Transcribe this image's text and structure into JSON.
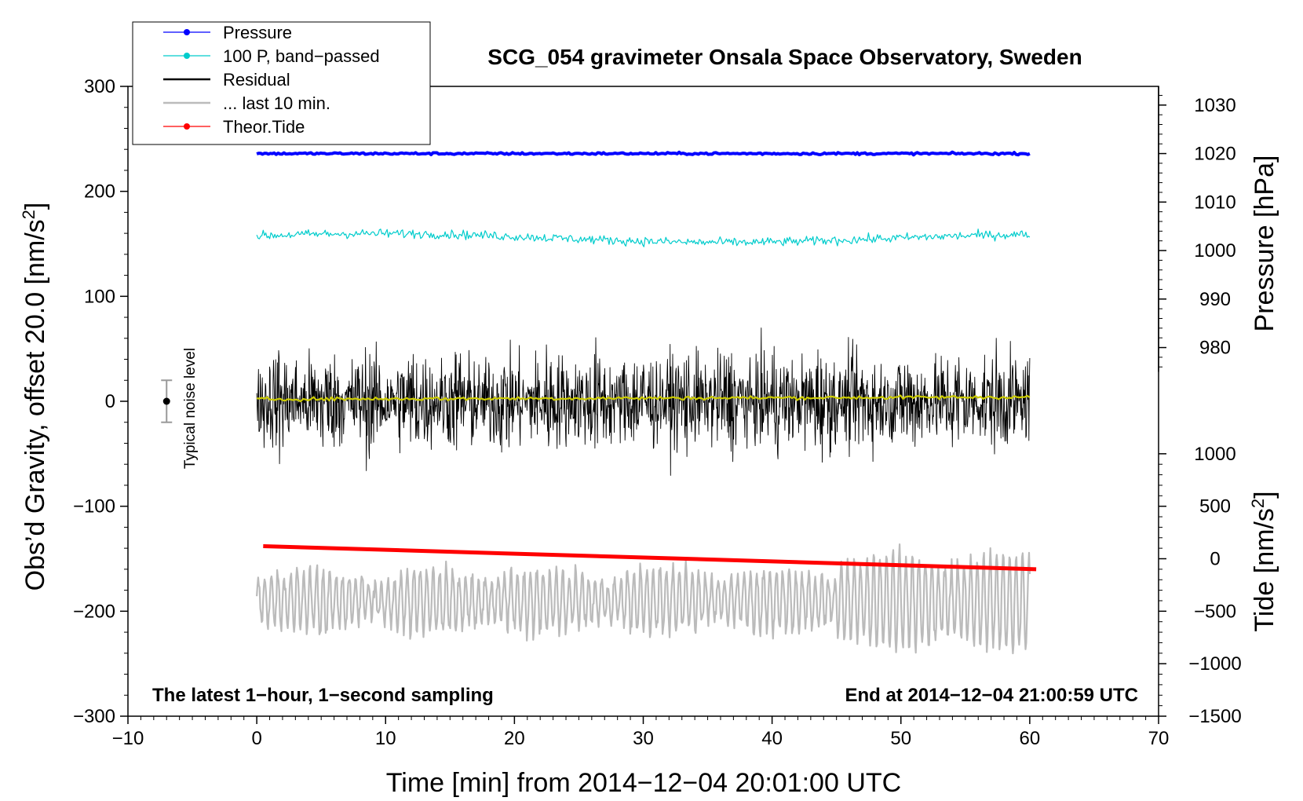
{
  "chart_data": {
    "type": "line",
    "title": "SCG_054 gravimeter Onsala Space Observatory, Sweden",
    "xlabel": "Time [min] from 2014−12−04 20:01:00 UTC",
    "ylabel_left": "Obs’d Gravity, offset 20.0 [nm/s",
    "ylabel_left_sup": "2",
    "ylabel_left_end": "]",
    "ylabel_pressure": "Pressure [hPa]",
    "ylabel_tide": "Tide [nm/s",
    "ylabel_tide_sup": "2",
    "ylabel_tide_end": "]",
    "xlim": [
      -10,
      70
    ],
    "ylim_left": [
      -300,
      300
    ],
    "x_ticks": [
      "−10",
      "0",
      "10",
      "20",
      "30",
      "40",
      "50",
      "60",
      "70"
    ],
    "x_tick_values": [
      -10,
      0,
      10,
      20,
      30,
      40,
      50,
      60,
      70
    ],
    "y_left_ticks": [
      "300",
      "200",
      "100",
      "0",
      "−100",
      "−200",
      "−300"
    ],
    "y_left_tick_values": [
      300,
      200,
      100,
      0,
      -100,
      -200,
      -300
    ],
    "pressure_axis": {
      "ticks": [
        "1030",
        "1020",
        "1010",
        "1000",
        "990",
        "980"
      ],
      "tick_values": [
        1030,
        1020,
        1010,
        1000,
        990,
        980
      ],
      "ref_value": 1020,
      "ref_gravity": 236,
      "gravity_per_hpa": 4.62
    },
    "tide_axis": {
      "ticks": [
        "1000",
        "500",
        "0",
        "−500",
        "−1000",
        "−1500"
      ],
      "tick_values": [
        1000,
        500,
        0,
        -500,
        -1000,
        -1500
      ],
      "ref_value": 0,
      "ref_gravity": -150,
      "gravity_per_unit": 0.1
    },
    "legend": {
      "position": "top-left",
      "entries": [
        {
          "label": "Pressure",
          "color": "#0000ff",
          "marker": "dot"
        },
        {
          "label": "100 P, band−passed",
          "color": "#00cccc",
          "marker": "dot"
        },
        {
          "label": "Residual",
          "color": "#000000",
          "marker": "none"
        },
        {
          "label": "... last 10 min.",
          "color": "#bbbbbb",
          "marker": "none"
        },
        {
          "label": "Theor.Tide",
          "color": "#ff0000",
          "marker": "dot"
        }
      ]
    },
    "annotations": {
      "bottom_left": "The latest 1−hour, 1−second sampling",
      "bottom_right": "End at 2014−12−04 21:00:59 UTC",
      "noise_label": "Typical noise level"
    },
    "noise_bar": {
      "x": -7,
      "y": 0,
      "err": 20
    },
    "series": [
      {
        "name": "Pressure",
        "color": "#0000ff",
        "x_range": [
          0,
          60
        ],
        "y_start": 236,
        "y_end": 236,
        "noise": 0.7
      },
      {
        "name": "100 P, band−passed",
        "color": "#00cccc",
        "x_range": [
          0,
          60
        ],
        "y_start": 156,
        "y_end": 155,
        "noise": 3.0
      },
      {
        "name": "Residual",
        "color": "#000000",
        "x_range": [
          0,
          60
        ],
        "y_start": 0,
        "y_end": 0,
        "noise": 30
      },
      {
        "name": "Residual smoothed",
        "color": "#cccc00",
        "x_range": [
          0,
          60
        ],
        "y_start": 2,
        "y_end": 4,
        "noise": 1.2
      },
      {
        "name": "... last 10 min.",
        "color": "#bbbbbb",
        "x_range": [
          0,
          60
        ],
        "y_start": -190,
        "y_end": -190,
        "noise": 25
      },
      {
        "name": "Theor.Tide",
        "color": "#ff0000",
        "x_range": [
          0.5,
          60.5
        ],
        "y_start": -138,
        "y_end": -160,
        "noise": 0
      }
    ]
  }
}
